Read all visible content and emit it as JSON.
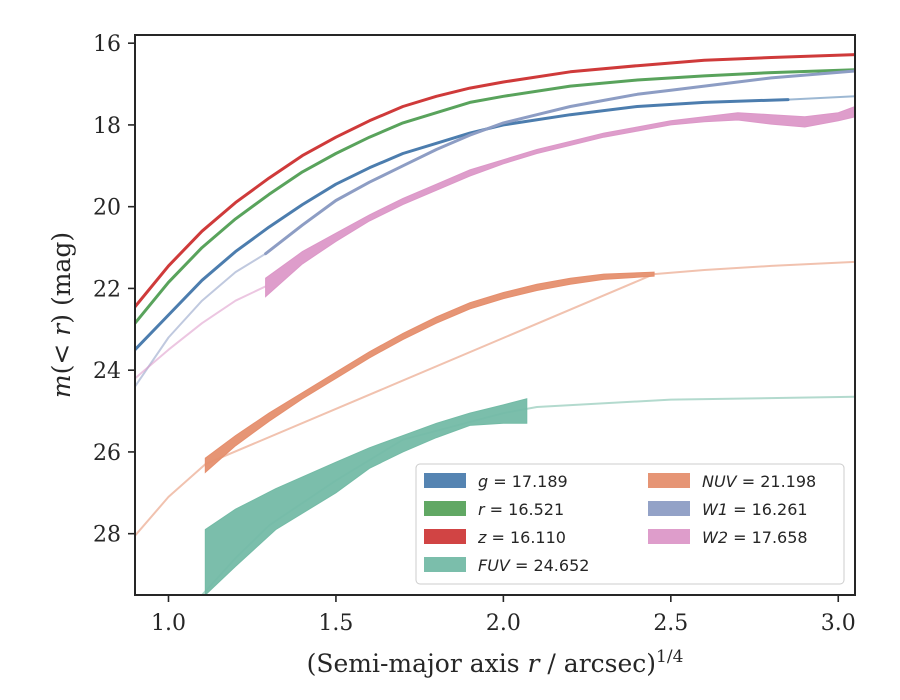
{
  "chart_data": {
    "type": "line",
    "xlabel": "(Semi-major axis r / arcsec)^1/4",
    "xlabel_parts": {
      "main": "(Semi-major axis ",
      "var": "r",
      "rest": " / arcsec)",
      "sup": "1/4"
    },
    "ylabel": "m(< r) (mag)",
    "ylabel_parts": {
      "var1": "m",
      "mid": "(< ",
      "var2": "r",
      "end": ") (mag)"
    },
    "xlim": [
      0.9,
      3.05
    ],
    "ylim": [
      29.5,
      15.8
    ],
    "y_inverted": true,
    "grid": false,
    "legend_position": "lower right",
    "xticks": [
      1.0,
      1.5,
      2.0,
      2.5,
      3.0
    ],
    "xtick_labels": [
      "1.0",
      "1.5",
      "2.0",
      "2.5",
      "3.0"
    ],
    "yticks": [
      16,
      18,
      20,
      22,
      24,
      26,
      28
    ],
    "ytick_labels": [
      "16",
      "18",
      "20",
      "22",
      "24",
      "26",
      "28"
    ],
    "series": [
      {
        "name": "g",
        "legend": "g = 17.189",
        "legend_var": "g",
        "legend_value": "= 17.189",
        "color": "#4c7dae",
        "kind": "line",
        "x": [
          0.9,
          1.0,
          1.1,
          1.2,
          1.3,
          1.4,
          1.5,
          1.6,
          1.7,
          1.8,
          1.9,
          2.0,
          2.2,
          2.4,
          2.6,
          2.85
        ],
        "y": [
          23.5,
          22.65,
          21.8,
          21.1,
          20.5,
          19.95,
          19.45,
          19.05,
          18.7,
          18.45,
          18.2,
          18.0,
          17.75,
          17.55,
          17.45,
          17.38
        ],
        "ext_x": [
          2.85,
          3.05
        ],
        "ext_y": [
          17.38,
          17.3
        ]
      },
      {
        "name": "r",
        "legend": "r = 16.521",
        "legend_var": "r",
        "legend_value": "= 16.521",
        "color": "#59a35c",
        "kind": "line",
        "x": [
          0.9,
          1.0,
          1.1,
          1.2,
          1.3,
          1.4,
          1.5,
          1.6,
          1.7,
          1.8,
          1.9,
          2.0,
          2.2,
          2.4,
          2.6,
          2.8,
          3.05
        ],
        "y": [
          22.85,
          21.85,
          21.0,
          20.3,
          19.7,
          19.15,
          18.7,
          18.3,
          17.95,
          17.7,
          17.45,
          17.3,
          17.05,
          16.9,
          16.8,
          16.72,
          16.65
        ]
      },
      {
        "name": "z",
        "legend": "z = 16.110",
        "legend_var": "z",
        "legend_value": "= 16.110",
        "color": "#cf3a3a",
        "kind": "line",
        "x": [
          0.9,
          1.0,
          1.1,
          1.2,
          1.3,
          1.4,
          1.5,
          1.6,
          1.7,
          1.8,
          1.9,
          2.0,
          2.2,
          2.4,
          2.6,
          2.8,
          3.05
        ],
        "y": [
          22.45,
          21.45,
          20.6,
          19.9,
          19.3,
          18.75,
          18.3,
          17.9,
          17.55,
          17.3,
          17.1,
          16.95,
          16.7,
          16.55,
          16.42,
          16.35,
          16.28
        ]
      },
      {
        "name": "FUV",
        "legend": "FUV = 24.652",
        "legend_var": "FUV",
        "legend_value": "= 24.652",
        "color": "#74bba6",
        "kind": "band",
        "x": [
          1.11,
          1.2,
          1.32,
          1.5,
          1.6,
          1.7,
          1.8,
          1.9,
          2.0,
          2.07
        ],
        "y_upper": [
          27.9,
          27.4,
          26.9,
          26.25,
          25.9,
          25.6,
          25.3,
          25.05,
          24.85,
          24.7
        ],
        "y_lower": [
          29.5,
          28.8,
          27.9,
          27.0,
          26.4,
          26.0,
          25.65,
          25.35,
          25.3,
          25.3
        ],
        "ext_x": [
          0.9,
          1.0,
          1.1,
          1.2,
          1.3,
          1.5,
          1.7,
          2.0,
          2.1,
          2.5,
          3.05
        ],
        "ext_y": [
          30.6,
          30.1,
          29.5,
          28.6,
          27.8,
          26.7,
          25.7,
          25.05,
          24.9,
          24.72,
          24.65
        ]
      },
      {
        "name": "NUV",
        "legend": "NUV = 21.198",
        "legend_var": "NUV",
        "legend_value": "= 21.198",
        "color": "#e58f6e",
        "kind": "band",
        "x": [
          1.11,
          1.2,
          1.3,
          1.4,
          1.5,
          1.6,
          1.7,
          1.8,
          1.9,
          2.0,
          2.1,
          2.2,
          2.3,
          2.45
        ],
        "y_upper": [
          26.15,
          25.6,
          25.05,
          24.55,
          24.05,
          23.55,
          23.1,
          22.7,
          22.35,
          22.1,
          21.9,
          21.75,
          21.65,
          21.6
        ],
        "y_lower": [
          26.5,
          25.85,
          25.25,
          24.7,
          24.2,
          23.7,
          23.25,
          22.85,
          22.5,
          22.25,
          22.05,
          21.9,
          21.78,
          21.7
        ],
        "ext_x": [
          0.9,
          1.0,
          1.11,
          2.45,
          2.6,
          2.8,
          3.05
        ],
        "ext_y": [
          28.05,
          27.1,
          26.3,
          21.65,
          21.55,
          21.45,
          21.35
        ]
      },
      {
        "name": "W1",
        "legend": "W1 = 16.261",
        "legend_var": "W1",
        "legend_value": "= 16.261",
        "color": "#8d9dc4",
        "kind": "line",
        "x": [
          1.29,
          1.4,
          1.5,
          1.6,
          1.7,
          1.8,
          1.9,
          2.0,
          2.1,
          2.2,
          2.3,
          2.4,
          2.5,
          2.6,
          2.7,
          2.8,
          2.9,
          3.05
        ],
        "y": [
          21.15,
          20.45,
          19.85,
          19.4,
          19.0,
          18.6,
          18.25,
          17.95,
          17.75,
          17.55,
          17.4,
          17.25,
          17.15,
          17.05,
          16.95,
          16.85,
          16.78,
          16.68
        ],
        "ext_x": [
          0.9,
          1.0,
          1.1,
          1.2,
          1.29
        ],
        "ext_y": [
          24.4,
          23.2,
          22.3,
          21.6,
          21.15
        ]
      },
      {
        "name": "W2",
        "legend": "W2 = 17.658",
        "legend_var": "W2",
        "legend_value": "= 17.658",
        "color": "#dc98c8",
        "kind": "band",
        "x": [
          1.29,
          1.4,
          1.5,
          1.6,
          1.7,
          1.8,
          1.9,
          2.0,
          2.1,
          2.2,
          2.3,
          2.4,
          2.5,
          2.6,
          2.7,
          2.8,
          2.9,
          3.0,
          3.05
        ],
        "y_upper": [
          21.75,
          21.1,
          20.65,
          20.2,
          19.8,
          19.45,
          19.1,
          18.85,
          18.6,
          18.4,
          18.2,
          18.05,
          17.9,
          17.8,
          17.7,
          17.75,
          17.8,
          17.7,
          17.55
        ],
        "y_lower": [
          22.2,
          21.4,
          20.85,
          20.35,
          19.95,
          19.6,
          19.25,
          18.95,
          18.7,
          18.5,
          18.3,
          18.15,
          18.0,
          17.92,
          17.88,
          17.98,
          18.05,
          17.9,
          17.8
        ],
        "ext_x": [
          0.9,
          1.0,
          1.1,
          1.2,
          1.29
        ],
        "ext_y": [
          24.2,
          23.5,
          22.85,
          22.3,
          21.95
        ]
      }
    ]
  }
}
